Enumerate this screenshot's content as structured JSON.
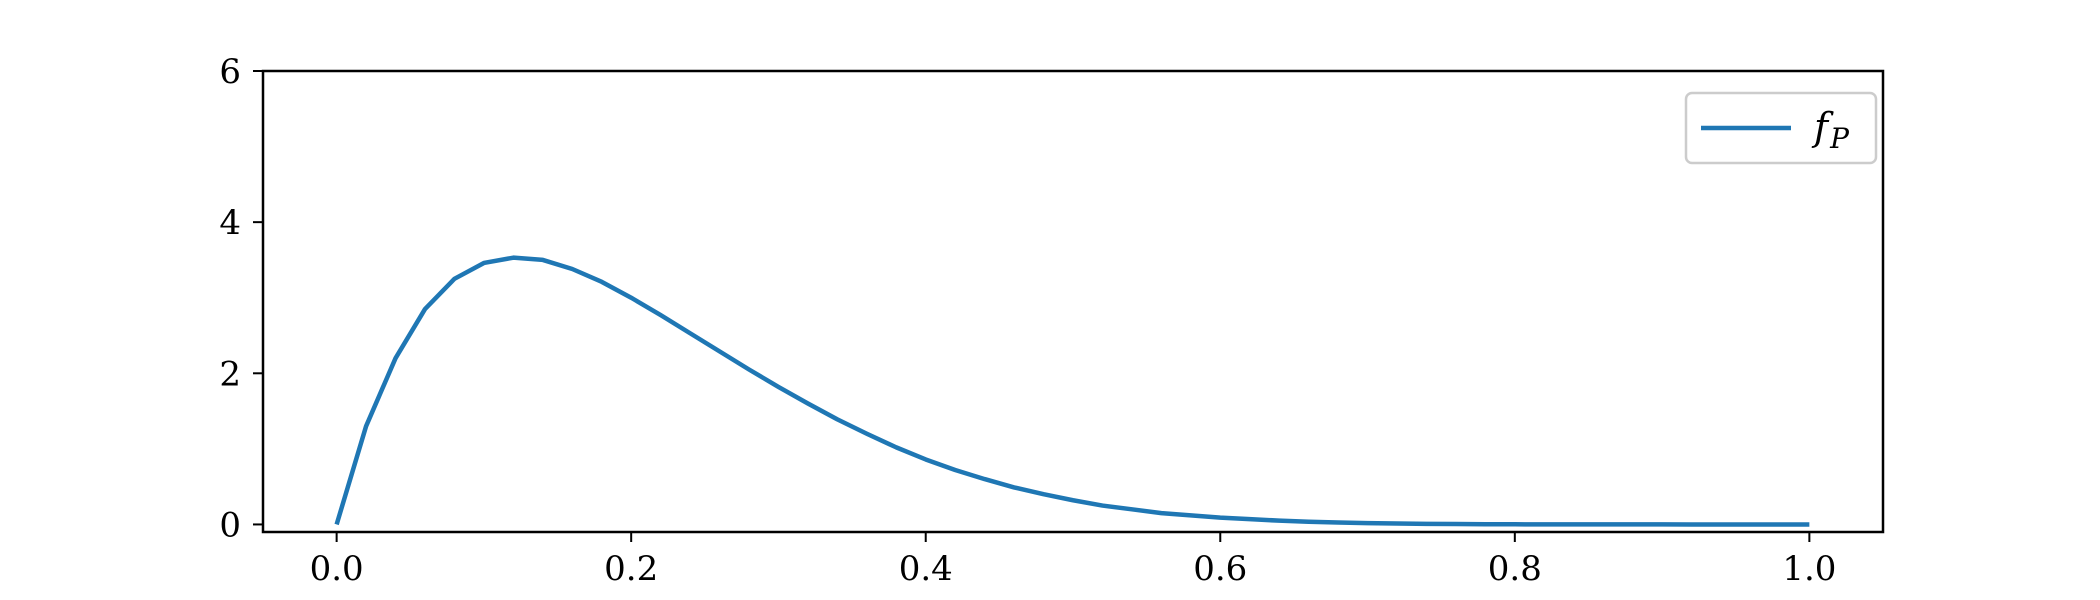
{
  "chart_data": {
    "type": "line",
    "title": "",
    "xlabel": "",
    "ylabel": "",
    "xlim": [
      -0.05,
      1.05
    ],
    "ylim": [
      -0.1,
      6.0
    ],
    "xticks": [
      0.0,
      0.2,
      0.4,
      0.6,
      0.8,
      1.0
    ],
    "xtick_labels": [
      "0.0",
      "0.2",
      "0.4",
      "0.6",
      "0.8",
      "1.0"
    ],
    "yticks": [
      0,
      2,
      4,
      6
    ],
    "ytick_labels": [
      "0",
      "2",
      "4",
      "6"
    ],
    "grid": false,
    "legend_position": "top-right",
    "series": [
      {
        "name": "f_P",
        "legend_main": "f",
        "legend_sub": "P",
        "color": "#1f77b4",
        "x": [
          0.0,
          0.02,
          0.04,
          0.06,
          0.08,
          0.1,
          0.12,
          0.14,
          0.16,
          0.18,
          0.2,
          0.22,
          0.24,
          0.26,
          0.28,
          0.3,
          0.32,
          0.34,
          0.36,
          0.38,
          0.4,
          0.42,
          0.44,
          0.46,
          0.48,
          0.5,
          0.52,
          0.54,
          0.56,
          0.58,
          0.6,
          0.62,
          0.64,
          0.66,
          0.68,
          0.7,
          0.72,
          0.74,
          0.76,
          0.78,
          0.8,
          0.82,
          0.84,
          0.86,
          0.88,
          0.9,
          0.92,
          0.94,
          0.96,
          0.98,
          1.0
        ],
        "y": [
          0.0,
          1.3,
          2.2,
          2.85,
          3.25,
          3.46,
          3.53,
          3.5,
          3.38,
          3.21,
          3.0,
          2.77,
          2.53,
          2.29,
          2.05,
          1.82,
          1.6,
          1.39,
          1.2,
          1.02,
          0.86,
          0.72,
          0.6,
          0.49,
          0.4,
          0.32,
          0.25,
          0.2,
          0.15,
          0.12,
          0.09,
          0.07,
          0.05,
          0.035,
          0.025,
          0.018,
          0.012,
          0.008,
          0.005,
          0.003,
          0.002,
          0.001,
          0.001,
          0.0005,
          0.0003,
          0.0002,
          0.0001,
          0.0,
          0.0,
          0.0,
          0.0
        ]
      }
    ]
  }
}
